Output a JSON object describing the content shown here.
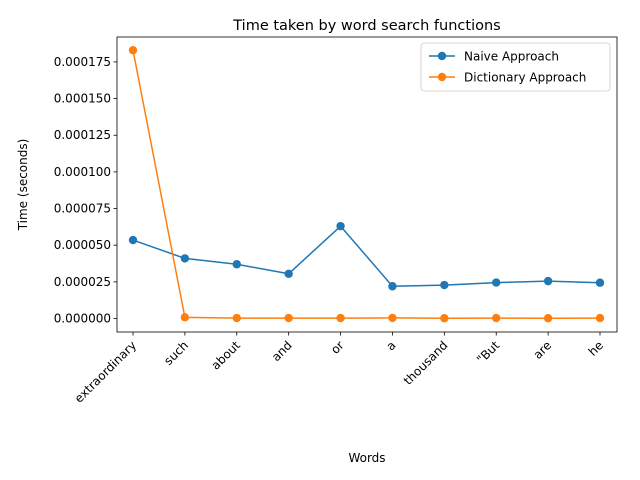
{
  "chart_data": {
    "type": "line",
    "title": "Time taken by word search functions",
    "xlabel": "Words",
    "ylabel": "Time (seconds)",
    "categories": [
      "extraordinary",
      "such",
      "about",
      "and",
      "or",
      "a",
      "thousand",
      "\"But",
      "are",
      "he"
    ],
    "series": [
      {
        "name": "Naive Approach",
        "color": "#1f77b4",
        "values": [
          5.35e-05,
          4.1e-05,
          3.7e-05,
          3.05e-05,
          6.3e-05,
          2.2e-05,
          2.28e-05,
          2.45e-05,
          2.55e-05,
          2.44e-05
        ]
      },
      {
        "name": "Dictionary Approach",
        "color": "#ff7f0e",
        "values": [
          0.000183,
          8e-07,
          3e-07,
          3e-07,
          3e-07,
          4e-07,
          2e-07,
          3e-07,
          2e-07,
          3e-07
        ]
      }
    ],
    "yticks": [
      0.0,
      2.5e-05,
      5e-05,
      7.5e-05,
      0.0001,
      0.000125,
      0.00015,
      0.000175
    ],
    "ytick_labels": [
      "0.000000",
      "0.000025",
      "0.000050",
      "0.000075",
      "0.000100",
      "0.000125",
      "0.000150",
      "0.000175"
    ],
    "ylim": [
      -9.2e-06,
      0.000192
    ],
    "grid": false,
    "legend_position": "top-right"
  }
}
